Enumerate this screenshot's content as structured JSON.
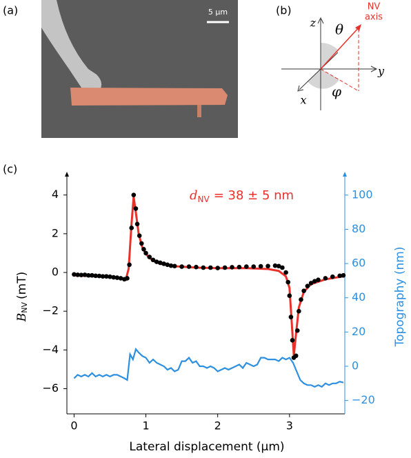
{
  "panels": {
    "a": {
      "label": "(a)",
      "scale_bar": "5 µm"
    },
    "b": {
      "label": "(b)",
      "z": "z",
      "y": "y",
      "x": "x",
      "theta": "θ",
      "phi": "φ",
      "nv_axis": [
        "NV",
        "axis"
      ]
    },
    "c": {
      "label": "(c)"
    }
  },
  "chart_data": {
    "type": "line",
    "x_label": "Lateral displacement (µm)",
    "y_label": {
      "symbol": "B",
      "subscript": "NV",
      "unit": "(mT)"
    },
    "y2_label": "Topography (nm)",
    "annotation": {
      "symbol": "d",
      "subscript": "NV",
      "text": "= 38 ± 5 nm",
      "color": "#e8312b"
    },
    "xlim": [
      -0.1,
      3.77
    ],
    "xticks": [
      0,
      1,
      2,
      3
    ],
    "ylim": [
      -7.3,
      4.88
    ],
    "yticks": [
      {
        "value": -6,
        "label": "−6"
      },
      {
        "value": -4,
        "label": "−4"
      },
      {
        "value": -2,
        "label": "−2"
      },
      0,
      2,
      4
    ],
    "y2lim": [
      -27.8,
      110
    ],
    "y2ticks": [
      {
        "value": -20,
        "label": "−20"
      },
      0,
      20,
      40,
      60,
      80,
      100
    ],
    "y2color": "#2d8fe0",
    "series": [
      {
        "style": "markers",
        "color": "#000000",
        "x": [
          0,
          0.05,
          0.1,
          0.15,
          0.2,
          0.25,
          0.3,
          0.35,
          0.4,
          0.45,
          0.5,
          0.55,
          0.6,
          0.65,
          0.7,
          0.74,
          0.77,
          0.8,
          0.83,
          0.86,
          0.88,
          0.91,
          0.94,
          0.97,
          1.0,
          1.05,
          1.1,
          1.15,
          1.2,
          1.25,
          1.3,
          1.35,
          1.4,
          1.5,
          1.6,
          1.7,
          1.8,
          1.9,
          2.0,
          2.1,
          2.2,
          2.3,
          2.4,
          2.5,
          2.6,
          2.7,
          2.8,
          2.85,
          2.9,
          2.95,
          2.98,
          3.0,
          3.02,
          3.04,
          3.06,
          3.09,
          3.11,
          3.13,
          3.16,
          3.2,
          3.25,
          3.3,
          3.35,
          3.4,
          3.5,
          3.6,
          3.7,
          3.75
        ],
        "values": [
          -0.1,
          -0.12,
          -0.13,
          -0.12,
          -0.15,
          -0.15,
          -0.17,
          -0.18,
          -0.2,
          -0.2,
          -0.22,
          -0.25,
          -0.27,
          -0.3,
          -0.35,
          -0.3,
          0.4,
          2.3,
          4.0,
          3.3,
          2.5,
          1.9,
          1.5,
          1.2,
          1.0,
          0.8,
          0.65,
          0.55,
          0.5,
          0.45,
          0.4,
          0.35,
          0.33,
          0.3,
          0.3,
          0.28,
          0.25,
          0.25,
          0.23,
          0.25,
          0.27,
          0.28,
          0.3,
          0.3,
          0.32,
          0.33,
          0.35,
          0.33,
          0.25,
          0.0,
          -0.5,
          -1.2,
          -2.3,
          -3.5,
          -4.4,
          -4.3,
          -3.0,
          -2.0,
          -1.4,
          -0.95,
          -0.7,
          -0.55,
          -0.45,
          -0.38,
          -0.3,
          -0.22,
          -0.17,
          -0.15
        ]
      },
      {
        "style": "line",
        "color": "#e8312b",
        "x": [
          0,
          0.3,
          0.6,
          0.72,
          0.76,
          0.8,
          0.83,
          0.86,
          0.9,
          0.95,
          1.0,
          1.1,
          1.2,
          1.4,
          1.7,
          2.0,
          2.4,
          2.7,
          2.85,
          2.95,
          3.0,
          3.03,
          3.06,
          3.09,
          3.13,
          3.2,
          3.3,
          3.5,
          3.75
        ],
        "values": [
          -0.15,
          -0.2,
          -0.28,
          -0.38,
          0.2,
          2.5,
          3.9,
          3.1,
          2.0,
          1.3,
          0.95,
          0.6,
          0.45,
          0.32,
          0.25,
          0.22,
          0.22,
          0.18,
          0.08,
          -0.2,
          -0.8,
          -2.5,
          -4.3,
          -3.2,
          -1.8,
          -1.0,
          -0.6,
          -0.35,
          -0.2
        ]
      },
      {
        "style": "line",
        "axis": "y2",
        "color": "#2d8fe0",
        "x": [
          0,
          0.05,
          0.1,
          0.15,
          0.2,
          0.25,
          0.3,
          0.35,
          0.4,
          0.45,
          0.5,
          0.55,
          0.6,
          0.65,
          0.7,
          0.74,
          0.78,
          0.82,
          0.86,
          0.9,
          0.95,
          1.0,
          1.05,
          1.1,
          1.15,
          1.2,
          1.25,
          1.3,
          1.35,
          1.4,
          1.45,
          1.5,
          1.55,
          1.6,
          1.65,
          1.7,
          1.75,
          1.8,
          1.85,
          1.9,
          1.95,
          2.0,
          2.05,
          2.1,
          2.15,
          2.2,
          2.25,
          2.3,
          2.35,
          2.4,
          2.45,
          2.5,
          2.55,
          2.6,
          2.65,
          2.7,
          2.75,
          2.8,
          2.85,
          2.9,
          2.95,
          3.0,
          3.05,
          3.1,
          3.15,
          3.2,
          3.25,
          3.3,
          3.35,
          3.4,
          3.45,
          3.5,
          3.55,
          3.6,
          3.65,
          3.7,
          3.75
        ],
        "values": [
          -7,
          -5,
          -6,
          -5,
          -6,
          -4,
          -6,
          -5,
          -6,
          -5,
          -6,
          -5,
          -5,
          -6,
          -7,
          -8,
          7,
          4,
          10,
          8,
          6,
          5,
          2,
          4,
          2,
          1,
          0,
          -2,
          -1,
          -3,
          -2,
          3,
          3,
          5,
          2,
          3,
          0,
          0,
          -1,
          0,
          -1,
          -3,
          -2,
          -1,
          -2,
          -1,
          0,
          1,
          -1,
          2,
          1,
          0,
          1,
          5,
          5,
          4,
          4,
          4,
          3,
          5,
          4,
          5,
          2,
          -3,
          -8,
          -10,
          -11,
          -11,
          -12,
          -11,
          -12,
          -10,
          -11,
          -10,
          -10,
          -9,
          -9.5
        ]
      }
    ]
  }
}
